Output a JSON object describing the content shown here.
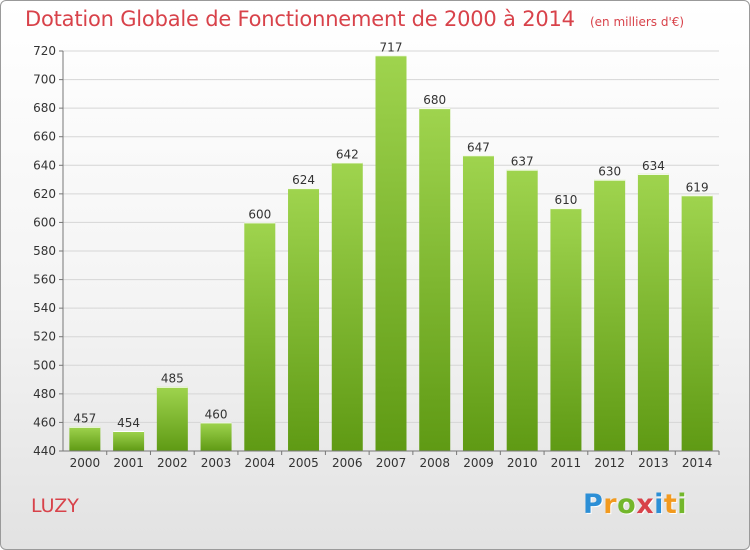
{
  "header": {
    "title": "Dotation Globale de Fonctionnement de 2000 à 2014",
    "unit": "(en milliers d'€)"
  },
  "footer": {
    "commune": "LUZY",
    "brand_letters": [
      {
        "char": "P",
        "color": "#2c8fd6"
      },
      {
        "char": "r",
        "color": "#f29a1f"
      },
      {
        "char": "o",
        "color": "#73b72b"
      },
      {
        "char": "x",
        "color": "#d8424a"
      },
      {
        "char": "i",
        "color": "#2c8fd6"
      },
      {
        "char": "t",
        "color": "#f29a1f"
      },
      {
        "char": "i",
        "color": "#73b72b"
      }
    ]
  },
  "colors": {
    "title": "#d8424a",
    "bar_top": "#9fd44e",
    "bar_bottom": "#5f9a14",
    "grid": "#d6d6d6",
    "axis_text": "#333333"
  },
  "chart_data": {
    "type": "bar",
    "title": "Dotation Globale de Fonctionnement de 2000 à 2014",
    "subtitle": "(en milliers d'€)",
    "xlabel": "",
    "ylabel": "",
    "categories": [
      "2000",
      "2001",
      "2002",
      "2003",
      "2004",
      "2005",
      "2006",
      "2007",
      "2008",
      "2009",
      "2010",
      "2011",
      "2012",
      "2013",
      "2014"
    ],
    "values": [
      457,
      454,
      485,
      460,
      600,
      624,
      642,
      717,
      680,
      647,
      637,
      610,
      630,
      634,
      619
    ],
    "ylim": [
      440,
      720
    ],
    "yticks": [
      440,
      460,
      480,
      500,
      520,
      540,
      560,
      580,
      600,
      620,
      640,
      660,
      680,
      700,
      720
    ],
    "grid": true,
    "legend": "none"
  }
}
